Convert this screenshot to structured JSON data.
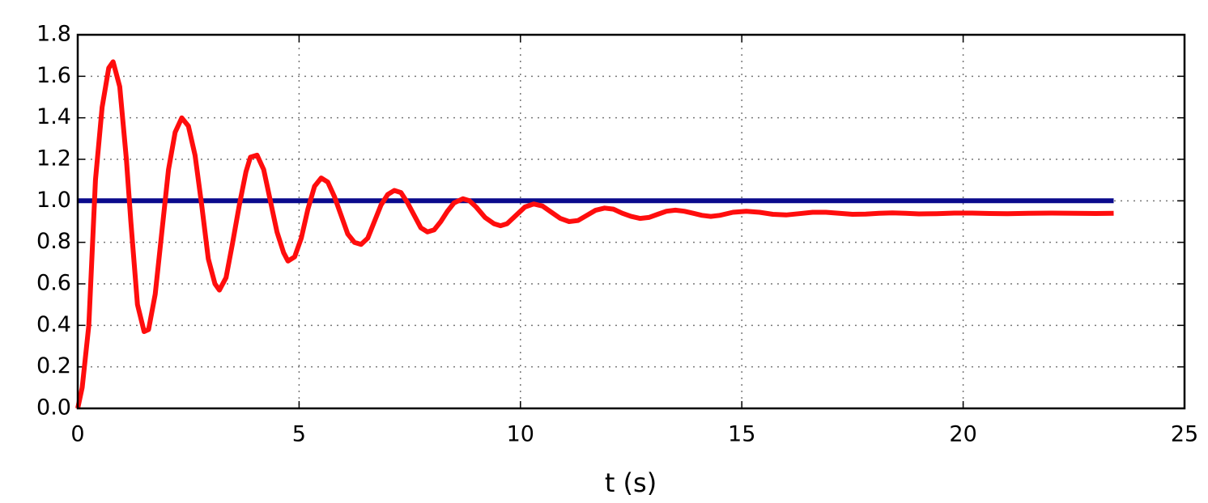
{
  "chart_data": {
    "type": "line",
    "xlabel": "t (s)",
    "xlim": [
      0,
      25
    ],
    "xticks": [
      0,
      5,
      10,
      15,
      20,
      25
    ],
    "ylim": [
      0,
      1.8
    ],
    "yticks": [
      {
        "value": 0,
        "label": "0.0"
      },
      0.2,
      0.4,
      0.6,
      0.8,
      {
        "value": 1,
        "label": "1.0"
      },
      1.2,
      1.4,
      1.6,
      1.8
    ],
    "grid": true,
    "series": [
      {
        "color": "#0a0a8c",
        "x": [
          0,
          23.4
        ],
        "values": [
          1,
          1
        ]
      },
      {
        "color": "#ff0d0d",
        "x": [
          0,
          0.1,
          0.25,
          0.4,
          0.55,
          0.7,
          0.8,
          0.95,
          1.1,
          1.2,
          1.35,
          1.5,
          1.6,
          1.75,
          1.9,
          2.05,
          2.2,
          2.35,
          2.5,
          2.65,
          2.8,
          2.95,
          3.1,
          3.2,
          3.35,
          3.5,
          3.65,
          3.8,
          3.9,
          4.05,
          4.2,
          4.35,
          4.5,
          4.65,
          4.75,
          4.9,
          5.05,
          5.2,
          5.35,
          5.5,
          5.65,
          5.8,
          5.95,
          6.1,
          6.25,
          6.4,
          6.55,
          6.7,
          6.85,
          7.0,
          7.15,
          7.3,
          7.45,
          7.6,
          7.75,
          7.9,
          8.05,
          8.2,
          8.35,
          8.5,
          8.7,
          8.85,
          9.0,
          9.2,
          9.4,
          9.55,
          9.7,
          9.9,
          10.1,
          10.3,
          10.5,
          10.7,
          10.9,
          11.1,
          11.3,
          11.5,
          11.7,
          11.9,
          12.1,
          12.3,
          12.5,
          12.7,
          12.9,
          13.1,
          13.3,
          13.5,
          13.7,
          13.9,
          14.1,
          14.3,
          14.5,
          14.8,
          15.1,
          15.4,
          15.7,
          16.0,
          16.3,
          16.6,
          16.9,
          17.2,
          17.5,
          17.8,
          18.1,
          18.4,
          18.7,
          19.0,
          19.4,
          19.8,
          20.2,
          20.6,
          21.0,
          21.5,
          22.0,
          22.5,
          23.0,
          23.4
        ],
        "values": [
          0,
          0.1,
          0.4,
          1.1,
          1.45,
          1.64,
          1.67,
          1.55,
          1.2,
          0.9,
          0.5,
          0.37,
          0.38,
          0.55,
          0.85,
          1.15,
          1.33,
          1.4,
          1.36,
          1.22,
          0.98,
          0.72,
          0.6,
          0.57,
          0.63,
          0.8,
          0.98,
          1.14,
          1.21,
          1.22,
          1.15,
          1.0,
          0.85,
          0.75,
          0.71,
          0.73,
          0.82,
          0.96,
          1.07,
          1.11,
          1.09,
          1.02,
          0.93,
          0.84,
          0.8,
          0.79,
          0.82,
          0.9,
          0.98,
          1.03,
          1.05,
          1.04,
          0.99,
          0.93,
          0.87,
          0.85,
          0.86,
          0.9,
          0.95,
          0.99,
          1.01,
          1.0,
          0.97,
          0.92,
          0.89,
          0.88,
          0.89,
          0.93,
          0.97,
          0.985,
          0.975,
          0.945,
          0.915,
          0.9,
          0.905,
          0.93,
          0.955,
          0.965,
          0.96,
          0.94,
          0.925,
          0.915,
          0.92,
          0.935,
          0.95,
          0.955,
          0.95,
          0.94,
          0.93,
          0.925,
          0.93,
          0.945,
          0.95,
          0.945,
          0.935,
          0.932,
          0.938,
          0.945,
          0.945,
          0.94,
          0.935,
          0.936,
          0.94,
          0.942,
          0.94,
          0.937,
          0.938,
          0.941,
          0.941,
          0.939,
          0.938,
          0.94,
          0.941,
          0.94,
          0.939,
          0.94
        ]
      }
    ]
  }
}
